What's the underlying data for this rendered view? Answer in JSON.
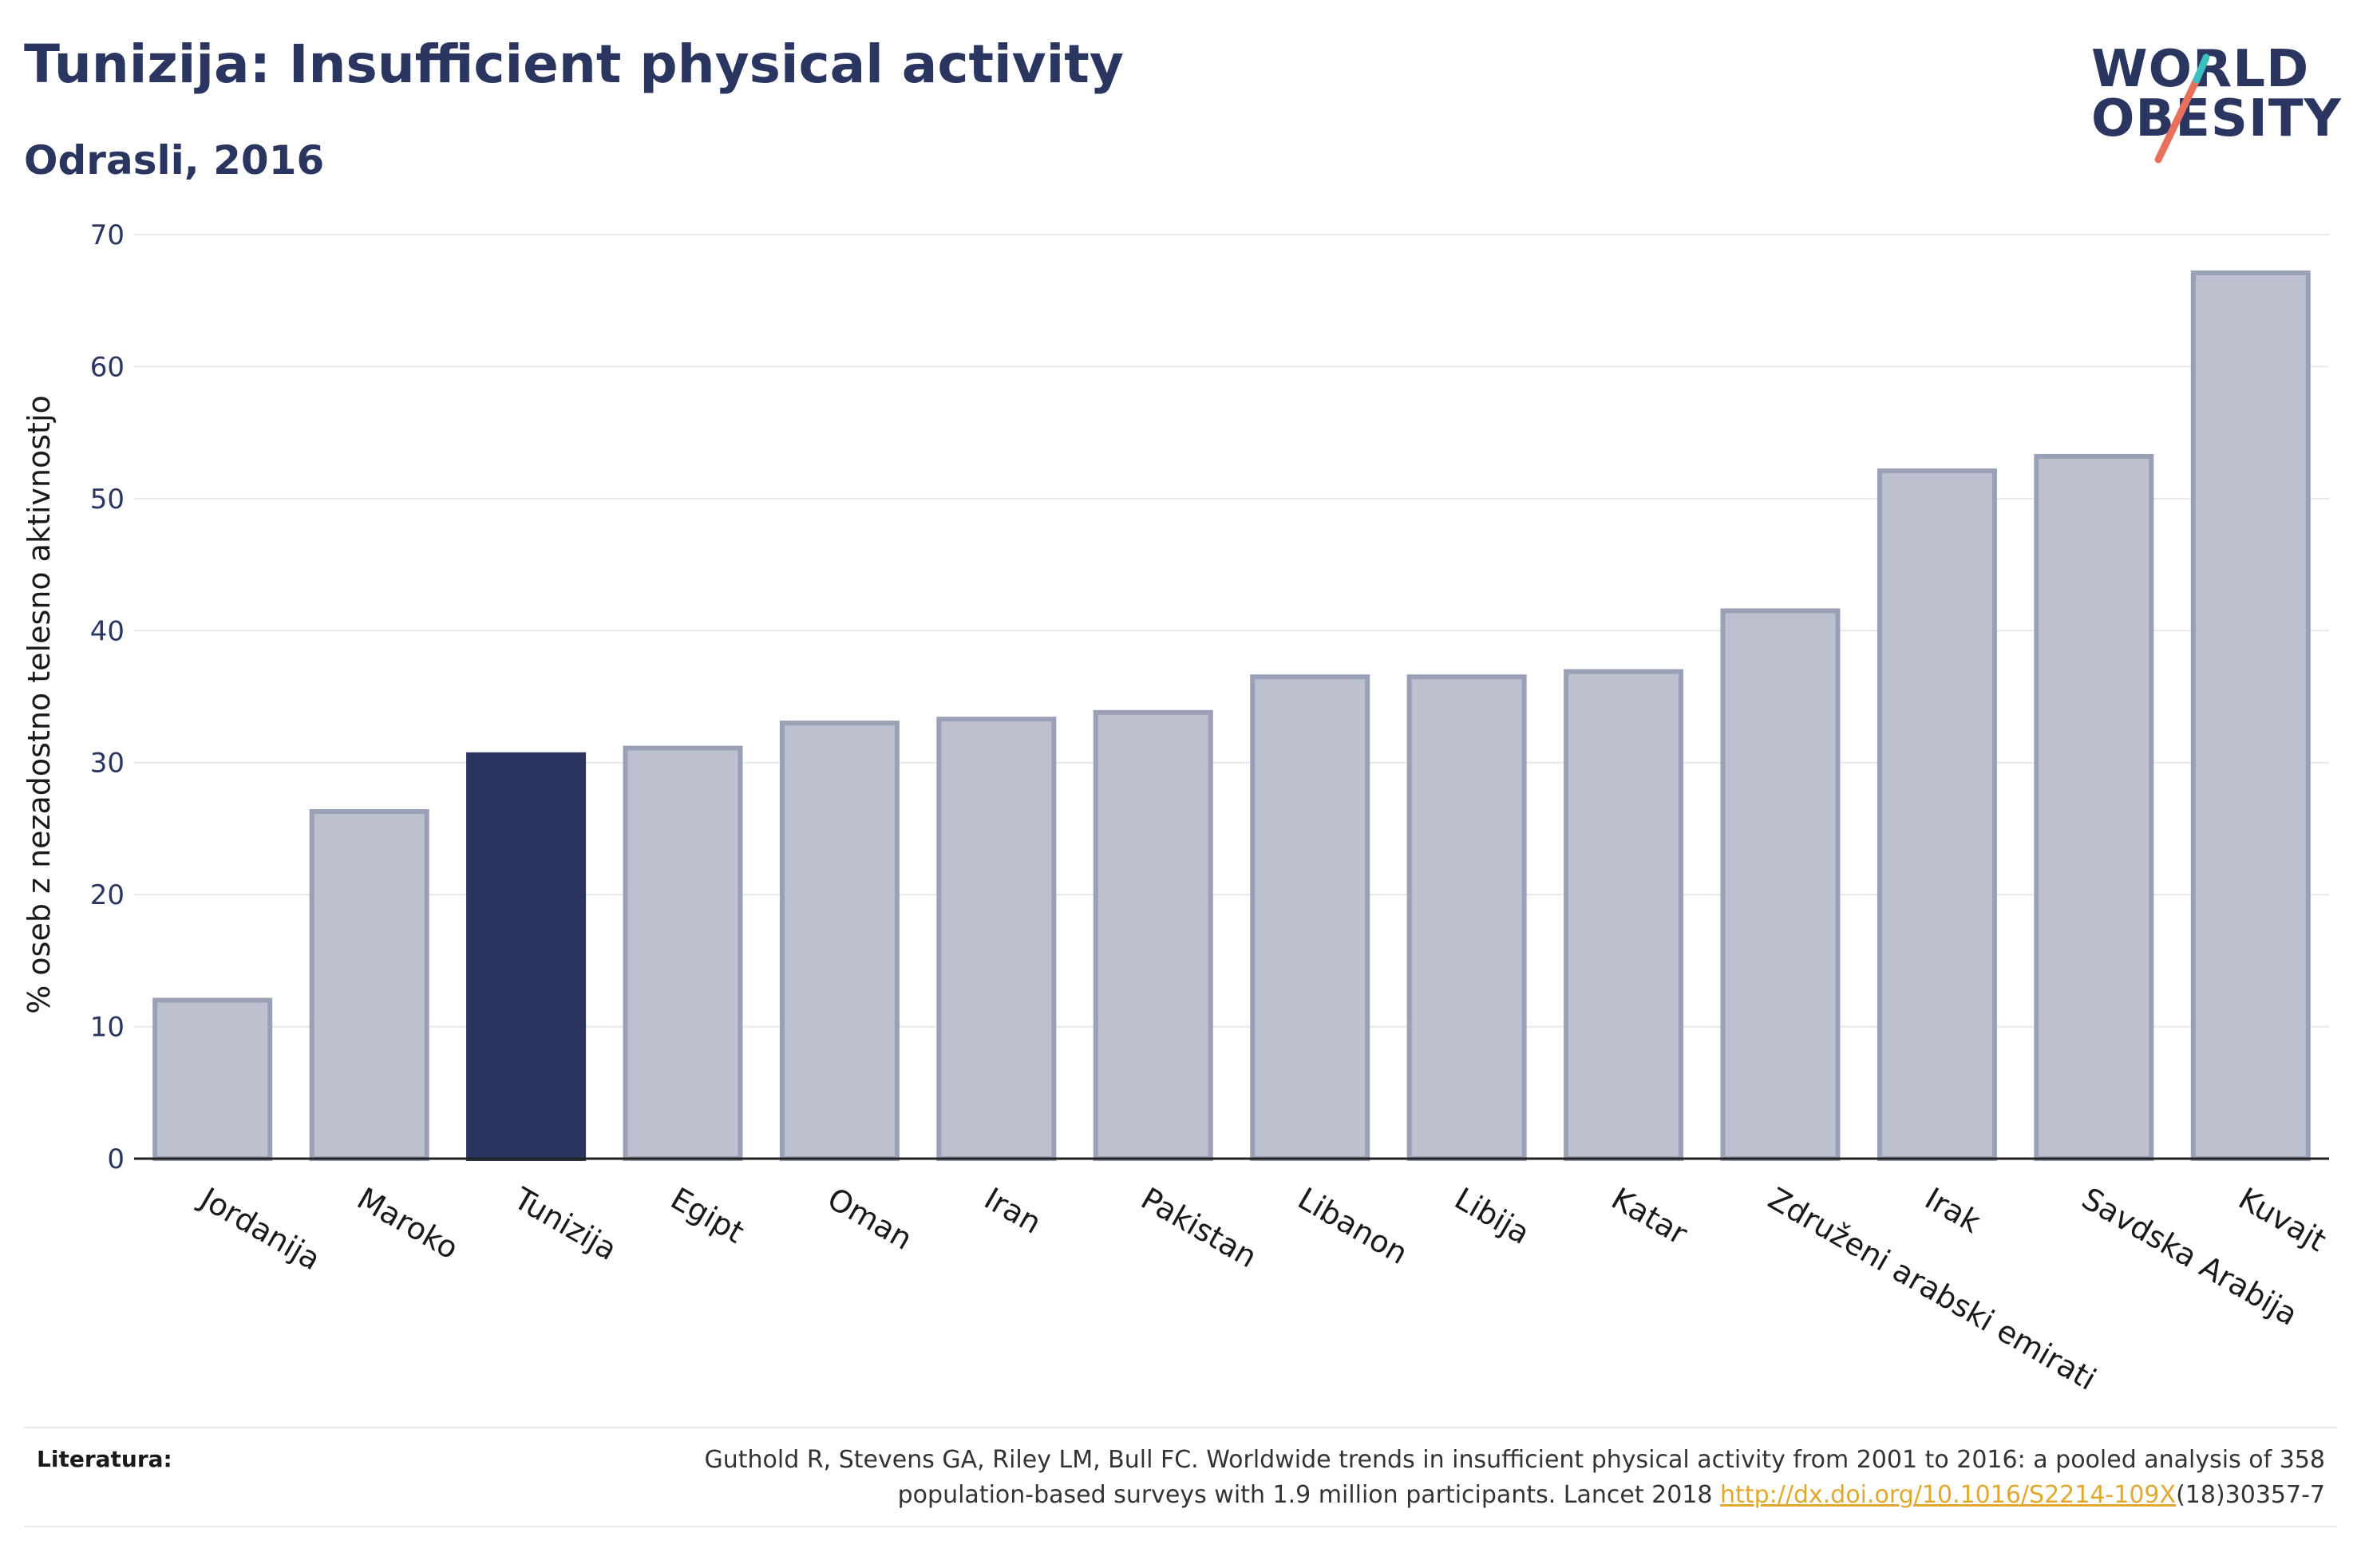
{
  "header": {
    "title": "Tunizija: Insufficient physical activity",
    "subtitle": "Odrasli, 2016"
  },
  "logo": {
    "line1": "WORLD",
    "line2": "OBESITY",
    "colors": {
      "text": "#2a3560",
      "slash_teal": "#3bbfbf",
      "slash_coral": "#e8705c"
    }
  },
  "chart_data": {
    "type": "bar",
    "categories": [
      "Jordanija",
      "Maroko",
      "Tunizija",
      "Egipt",
      "Oman",
      "Iran",
      "Pakistan",
      "Libanon",
      "Libija",
      "Katar",
      "Združeni arabski emirati",
      "Irak",
      "Savdska Arabija",
      "Kuvajt"
    ],
    "values": [
      12.0,
      26.3,
      30.6,
      31.1,
      33.0,
      33.3,
      33.8,
      36.5,
      36.5,
      36.9,
      41.5,
      52.1,
      53.2,
      67.1
    ],
    "highlight": "Tunizija",
    "ylabel": "% oseb z nezadostno telesno aktivnostjo",
    "ylim": [
      0,
      70
    ],
    "yticks": [
      0,
      10,
      20,
      30,
      40,
      50,
      60,
      70
    ],
    "grid": true,
    "colors": {
      "bar": "#bcc0cf",
      "bar_edge": "#9aa0b6",
      "highlight": "#2a3560",
      "grid": "#e6e8ec",
      "axis": "#222222"
    }
  },
  "footer": {
    "label": "Literatura:",
    "text_line1": "Guthold R, Stevens GA, Riley LM, Bull FC. Worldwide trends in insufficient physical activity from 2001 to 2016: a pooled analysis of 358",
    "text_line2_prefix": "population-based surveys with 1.9 million participants. Lancet 2018 ",
    "link": "http://dx.doi.org/10.1016/S2214-109X",
    "text_line2_suffix": "(18)30357-7"
  }
}
